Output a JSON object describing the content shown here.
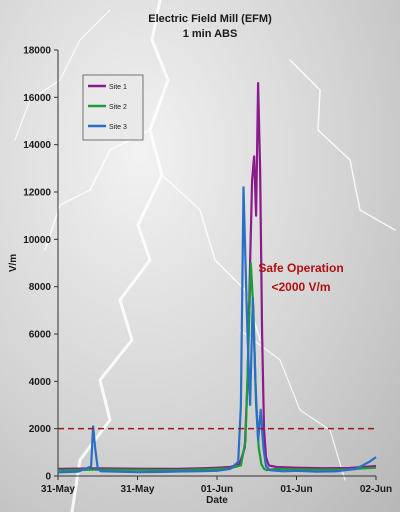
{
  "chart_data": {
    "type": "line",
    "title": "Electric Field Mill (EFM)",
    "subtitle": "1 min ABS",
    "xlabel": "Date",
    "ylabel": "V/m",
    "ylim": [
      0,
      18000
    ],
    "y_ticks": [
      "0",
      "2000",
      "4000",
      "6000",
      "8000",
      "10000",
      "12000",
      "14000",
      "16000",
      "18000"
    ],
    "x_ticks": [
      "31-May",
      "31-May",
      "01-Jun",
      "01-Jun",
      "02-Jun"
    ],
    "xlim": [
      0,
      48
    ],
    "legend_position": "top-left",
    "grid": false,
    "threshold": {
      "value": 2000,
      "color": "#a01818"
    },
    "annotation": {
      "line1": "Safe Operation",
      "line2": "<2000 V/m"
    },
    "series": [
      {
        "name": "Site 1",
        "color": "#8b1a8b",
        "x": [
          0,
          6,
          12,
          18,
          22,
          24,
          26,
          27.4,
          28.2,
          28.6,
          29.0,
          29.3,
          29.6,
          29.9,
          30.2,
          30.5,
          30.8,
          31.1,
          31.4,
          31.8,
          33,
          36,
          40,
          44,
          46,
          48
        ],
        "y": [
          300,
          320,
          310,
          300,
          330,
          350,
          380,
          500,
          1200,
          4000,
          9000,
          12500,
          13500,
          11000,
          16600,
          13000,
          6000,
          2000,
          800,
          450,
          380,
          350,
          330,
          340,
          380,
          420
        ]
      },
      {
        "name": "Site 2",
        "color": "#1f9a3a",
        "x": [
          0,
          6,
          12,
          18,
          22,
          24,
          26,
          27.6,
          28.3,
          28.7,
          29.1,
          29.5,
          29.9,
          30.3,
          30.7,
          31.1,
          31.5,
          33,
          36,
          40,
          44,
          46,
          48
        ],
        "y": [
          250,
          270,
          260,
          250,
          280,
          300,
          330,
          450,
          1500,
          5000,
          9000,
          7000,
          3000,
          1200,
          500,
          300,
          250,
          300,
          280,
          270,
          280,
          320,
          350
        ]
      },
      {
        "name": "Site 3",
        "color": "#2a6fc4",
        "x": [
          0,
          3,
          5,
          5.3,
          5.6,
          6.0,
          6.5,
          9,
          12,
          15,
          18,
          21,
          24,
          26,
          27.2,
          27.6,
          28.0,
          28.3,
          28.6,
          29.0,
          29.4,
          29.8,
          30.2,
          30.6,
          31.0,
          31.4,
          32,
          34,
          36,
          39,
          42,
          45,
          47,
          48
        ],
        "y": [
          150,
          180,
          400,
          2100,
          1200,
          300,
          200,
          180,
          160,
          170,
          190,
          200,
          220,
          300,
          600,
          3000,
          12200,
          9000,
          6000,
          3000,
          7500,
          4000,
          1500,
          2800,
          1200,
          400,
          250,
          200,
          220,
          180,
          200,
          300,
          600,
          800
        ]
      }
    ]
  }
}
